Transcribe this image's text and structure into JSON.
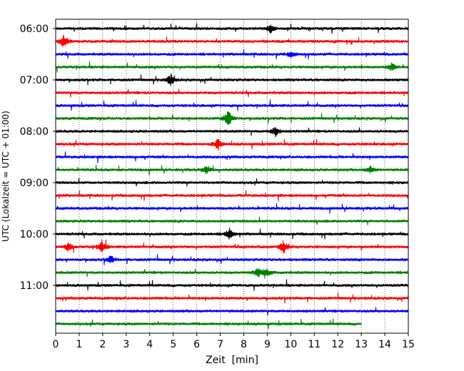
{
  "chart_data": {
    "type": "line",
    "subtype": "seismogram-helicorder",
    "title": "",
    "xlabel": "Zeit  [min]",
    "ylabel": "UTC (Lokalzeit = UTC + 01:00)",
    "xlim": [
      0,
      15
    ],
    "x_ticks": [
      "0",
      "1",
      "2",
      "3",
      "4",
      "5",
      "6",
      "7",
      "8",
      "9",
      "10",
      "11",
      "12",
      "13",
      "14",
      "15"
    ],
    "y_ticks": [
      "06:00",
      "07:00",
      "08:00",
      "09:00",
      "10:00",
      "11:00"
    ],
    "grid": "vertical dotted",
    "legend": "none",
    "line_interval_minutes": 15,
    "color_cycle": [
      "#000000",
      "#ff0000",
      "#0000ff",
      "#008000"
    ],
    "traces": [
      {
        "start": "06:00",
        "color": "#000000",
        "end_min": 15
      },
      {
        "start": "06:15",
        "color": "#ff0000",
        "end_min": 15
      },
      {
        "start": "06:30",
        "color": "#0000ff",
        "end_min": 15
      },
      {
        "start": "06:45",
        "color": "#008000",
        "end_min": 15
      },
      {
        "start": "07:00",
        "color": "#000000",
        "end_min": 15
      },
      {
        "start": "07:15",
        "color": "#ff0000",
        "end_min": 15
      },
      {
        "start": "07:30",
        "color": "#0000ff",
        "end_min": 15
      },
      {
        "start": "07:45",
        "color": "#008000",
        "end_min": 15
      },
      {
        "start": "08:00",
        "color": "#000000",
        "end_min": 15
      },
      {
        "start": "08:15",
        "color": "#ff0000",
        "end_min": 15
      },
      {
        "start": "08:30",
        "color": "#0000ff",
        "end_min": 15
      },
      {
        "start": "08:45",
        "color": "#008000",
        "end_min": 15
      },
      {
        "start": "09:00",
        "color": "#000000",
        "end_min": 15
      },
      {
        "start": "09:15",
        "color": "#ff0000",
        "end_min": 15
      },
      {
        "start": "09:30",
        "color": "#0000ff",
        "end_min": 15
      },
      {
        "start": "09:45",
        "color": "#008000",
        "end_min": 15
      },
      {
        "start": "10:00",
        "color": "#000000",
        "end_min": 15
      },
      {
        "start": "10:15",
        "color": "#ff0000",
        "end_min": 15
      },
      {
        "start": "10:30",
        "color": "#0000ff",
        "end_min": 15
      },
      {
        "start": "10:45",
        "color": "#008000",
        "end_min": 15
      },
      {
        "start": "11:00",
        "color": "#000000",
        "end_min": 15
      },
      {
        "start": "11:15",
        "color": "#ff0000",
        "end_min": 15
      },
      {
        "start": "11:30",
        "color": "#0000ff",
        "end_min": 15
      },
      {
        "start": "11:45",
        "color": "#008000",
        "end_min": 13
      }
    ],
    "events": [
      {
        "trace": 1,
        "minute": 0.35,
        "amplitude": 0.75
      },
      {
        "trace": 0,
        "minute": 9.15,
        "amplitude": 0.45
      },
      {
        "trace": 2,
        "minute": 10.0,
        "amplitude": 0.35
      },
      {
        "trace": 3,
        "minute": 14.3,
        "amplitude": 0.4
      },
      {
        "trace": 4,
        "minute": 4.9,
        "amplitude": 0.6
      },
      {
        "trace": 7,
        "minute": 7.35,
        "amplitude": 1.0
      },
      {
        "trace": 8,
        "minute": 9.35,
        "amplitude": 0.55
      },
      {
        "trace": 9,
        "minute": 6.9,
        "amplitude": 0.6
      },
      {
        "trace": 11,
        "minute": 6.4,
        "amplitude": 0.4
      },
      {
        "trace": 11,
        "minute": 13.4,
        "amplitude": 0.4
      },
      {
        "trace": 16,
        "minute": 7.4,
        "amplitude": 0.6
      },
      {
        "trace": 17,
        "minute": 1.95,
        "amplitude": 0.7
      },
      {
        "trace": 17,
        "minute": 9.7,
        "amplitude": 0.7
      },
      {
        "trace": 17,
        "minute": 0.55,
        "amplitude": 0.45
      },
      {
        "trace": 18,
        "minute": 2.35,
        "amplitude": 0.4
      },
      {
        "trace": 19,
        "minute": 8.6,
        "amplitude": 0.45
      },
      {
        "trace": 19,
        "minute": 9.0,
        "amplitude": 0.45
      }
    ]
  }
}
